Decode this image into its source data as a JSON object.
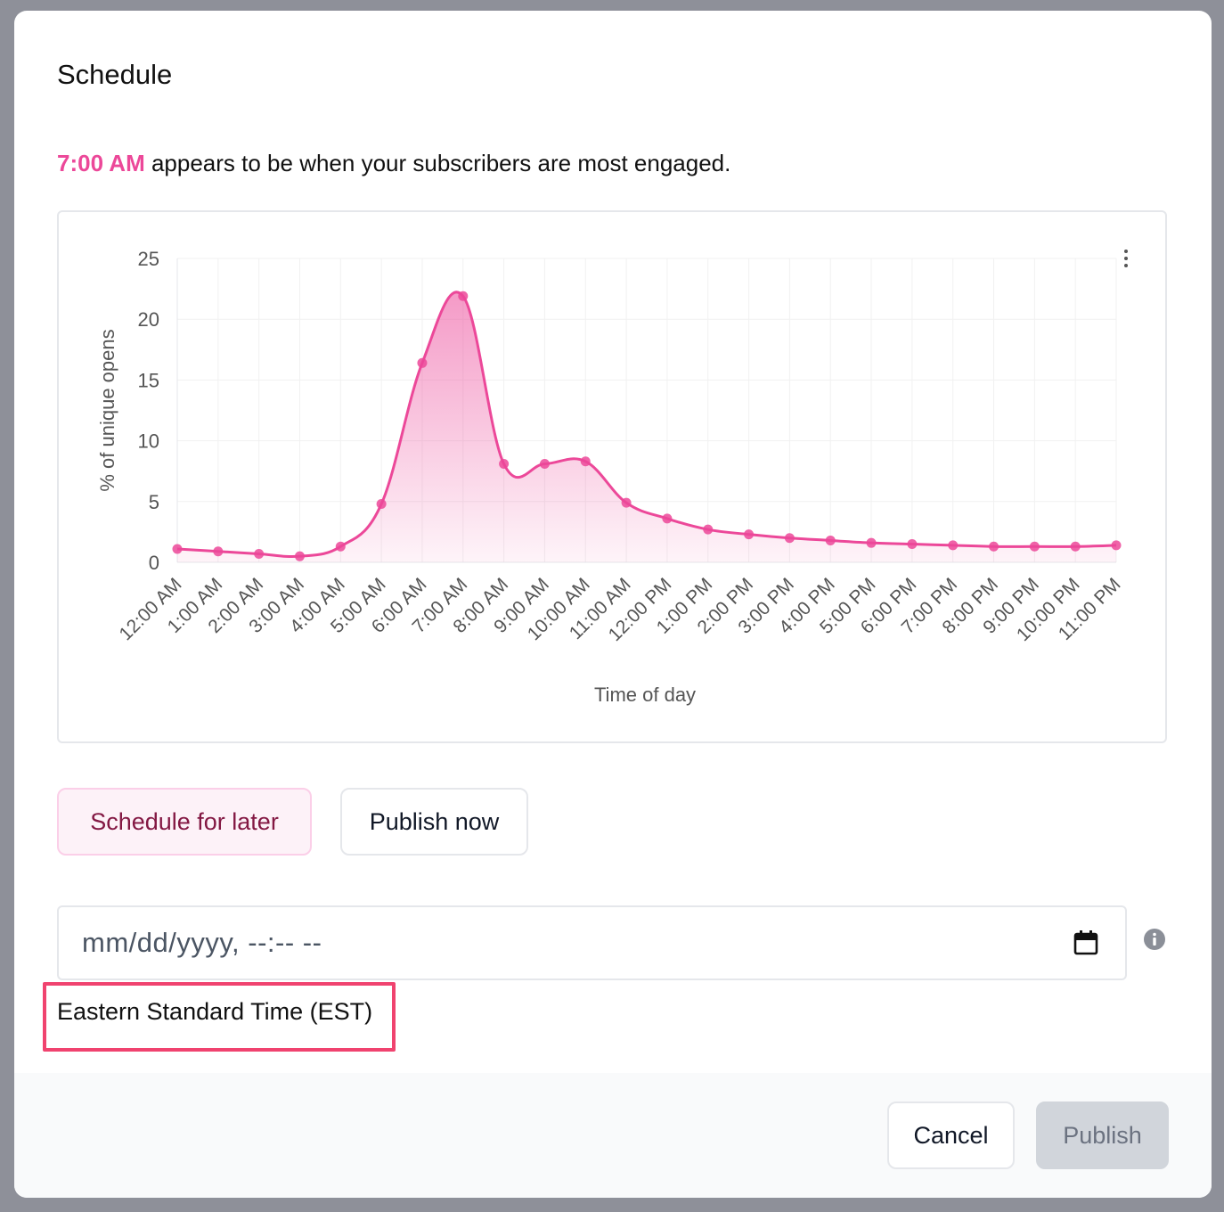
{
  "modal": {
    "title": "Schedule",
    "engagement": {
      "time": "7:00 AM",
      "message": " appears to be when your subscribers are most engaged."
    }
  },
  "chart_data": {
    "type": "area",
    "title": "",
    "xlabel": "Time of day",
    "ylabel": "% of unique opens",
    "ylim": [
      0,
      25
    ],
    "yticks": [
      0,
      5,
      10,
      15,
      20,
      25
    ],
    "grid": true,
    "categories": [
      "12:00 AM",
      "1:00 AM",
      "2:00 AM",
      "3:00 AM",
      "4:00 AM",
      "5:00 AM",
      "6:00 AM",
      "7:00 AM",
      "8:00 AM",
      "9:00 AM",
      "10:00 AM",
      "11:00 AM",
      "12:00 PM",
      "1:00 PM",
      "2:00 PM",
      "3:00 PM",
      "4:00 PM",
      "5:00 PM",
      "6:00 PM",
      "7:00 PM",
      "8:00 PM",
      "9:00 PM",
      "10:00 PM",
      "11:00 PM"
    ],
    "values": [
      1.1,
      0.9,
      0.7,
      0.5,
      1.3,
      4.8,
      16.4,
      21.9,
      8.1,
      8.1,
      8.3,
      4.9,
      3.6,
      2.7,
      2.3,
      2.0,
      1.8,
      1.6,
      1.5,
      1.4,
      1.3,
      1.3,
      1.3,
      1.4
    ],
    "color": "#ec4899"
  },
  "chart_menu_icon": "kebab-menu-icon",
  "mode_buttons": {
    "schedule_later": "Schedule for later",
    "publish_now": "Publish now"
  },
  "datetime": {
    "placeholder": "mm/dd/yyyy, --:-- --",
    "calendar_icon": "calendar-icon",
    "info_icon": "info-icon",
    "timezone": "Eastern Standard Time (EST)"
  },
  "footer": {
    "cancel": "Cancel",
    "publish": "Publish"
  },
  "colors": {
    "accent": "#ec4899",
    "highlight": "#f0436f",
    "disabled": "#d1d5db"
  }
}
